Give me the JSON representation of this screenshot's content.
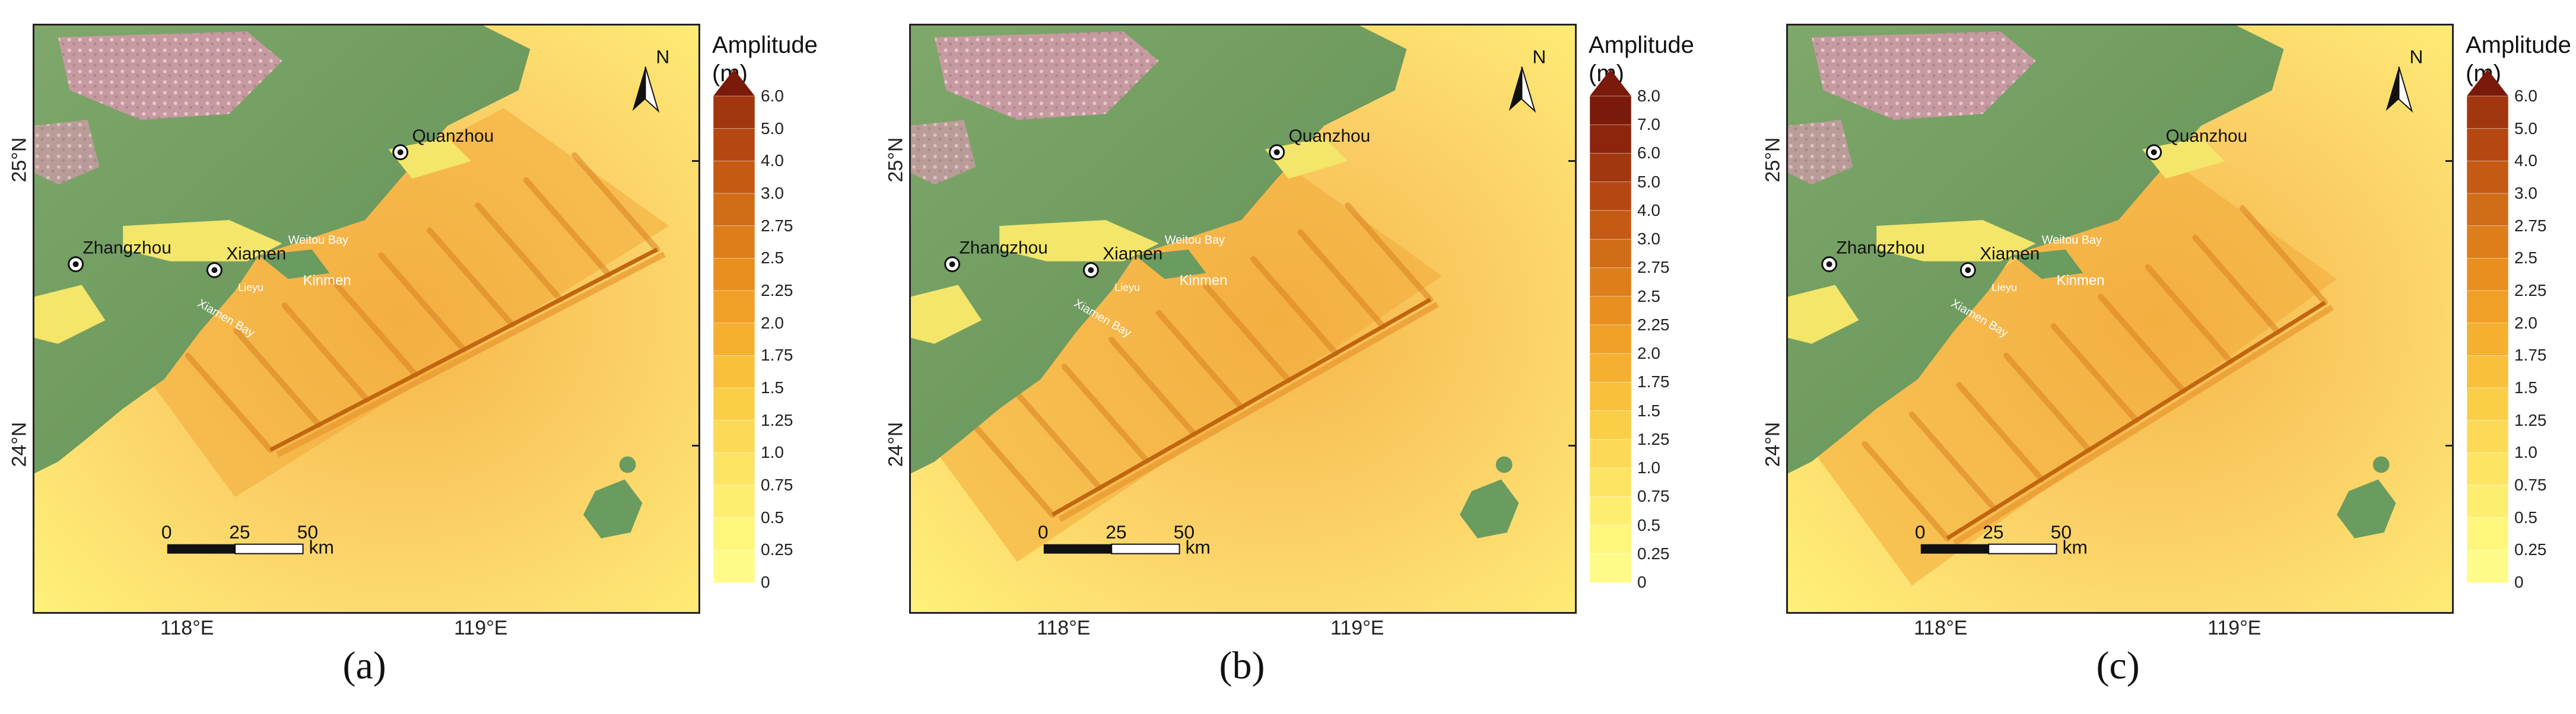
{
  "legend_title_line1": "Amplitude",
  "legend_title_line2": "(m)",
  "lat_labels": [
    "25°N",
    "24°N"
  ],
  "lon_labels": [
    "118°E",
    "119°E"
  ],
  "north_label": "N",
  "cities": [
    "Quanzhou",
    "Zhangzhou",
    "Xiamen"
  ],
  "places": [
    "Weitou Bay",
    "Lieyu",
    "Kinmen",
    "Xiamen Bay"
  ],
  "scale": {
    "ticks": [
      "0",
      "25",
      "50"
    ],
    "unit": "km"
  },
  "colors": {
    "sea_low": "#fff176",
    "sea_mid": "#fdb83c",
    "sea_high": "#e8901e",
    "fault": "#c1660f",
    "land_green": "#6a9b5f",
    "land_pink": "#cfa2a8",
    "legend_top": "#7a1a0a"
  },
  "panels": [
    {
      "caption": "(a)",
      "legend_labels": [
        "6.0",
        "5.0",
        "4.0",
        "3.0",
        "2.75",
        "2.5",
        "2.25",
        "2.0",
        "1.75",
        "1.5",
        "1.25",
        "1.0",
        "0.75",
        "0.5",
        "0.25",
        "0"
      ]
    },
    {
      "caption": "(b)",
      "legend_labels": [
        "8.0",
        "7.0",
        "6.0",
        "5.0",
        "4.0",
        "3.0",
        "2.75",
        "2.5",
        "2.25",
        "2.0",
        "1.75",
        "1.5",
        "1.25",
        "1.0",
        "0.75",
        "0.5",
        "0.25",
        "0"
      ]
    },
    {
      "caption": "(c)",
      "legend_labels": [
        "6.0",
        "5.0",
        "4.0",
        "3.0",
        "2.75",
        "2.5",
        "2.25",
        "2.0",
        "1.75",
        "1.5",
        "1.25",
        "1.0",
        "0.75",
        "0.5",
        "0.25",
        "0"
      ]
    }
  ]
}
